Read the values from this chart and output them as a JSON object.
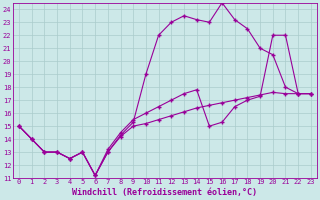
{
  "xlabel": "Windchill (Refroidissement éolien,°C)",
  "xlim": [
    -0.5,
    23.5
  ],
  "ylim": [
    11,
    24.5
  ],
  "xticks": [
    0,
    1,
    2,
    3,
    4,
    5,
    6,
    7,
    8,
    9,
    10,
    11,
    12,
    13,
    14,
    15,
    16,
    17,
    18,
    19,
    20,
    21,
    22,
    23
  ],
  "yticks": [
    11,
    12,
    13,
    14,
    15,
    16,
    17,
    18,
    19,
    20,
    21,
    22,
    23,
    24
  ],
  "bg_color": "#cce8e8",
  "grid_color": "#aacccc",
  "line_color": "#990099",
  "line1_x": [
    0,
    1,
    2,
    3,
    4,
    5,
    6,
    7,
    8,
    9,
    10,
    11,
    12,
    13,
    14,
    15,
    16,
    17,
    18,
    19,
    20,
    21,
    22,
    23
  ],
  "line1_y": [
    15.0,
    14.0,
    13.0,
    13.0,
    12.5,
    13.0,
    11.2,
    13.0,
    14.3,
    15.3,
    19.0,
    22.0,
    23.0,
    23.5,
    23.2,
    23.0,
    24.5,
    23.2,
    22.5,
    21.0,
    20.5,
    18.0,
    17.5,
    17.5
  ],
  "line2_x": [
    0,
    1,
    2,
    3,
    4,
    5,
    6,
    7,
    8,
    9,
    10,
    11,
    12,
    13,
    14,
    15,
    16,
    17,
    18,
    19,
    20,
    21,
    22,
    23
  ],
  "line2_y": [
    15.0,
    14.0,
    13.0,
    13.0,
    12.5,
    13.0,
    11.2,
    13.2,
    14.5,
    15.5,
    16.0,
    16.5,
    17.0,
    17.5,
    17.8,
    15.0,
    15.3,
    16.5,
    17.0,
    17.3,
    22.0,
    22.0,
    17.5,
    17.5
  ],
  "line3_x": [
    0,
    1,
    2,
    3,
    4,
    5,
    6,
    7,
    8,
    9,
    10,
    11,
    12,
    13,
    14,
    15,
    16,
    17,
    18,
    19,
    20,
    21,
    22,
    23
  ],
  "line3_y": [
    15.0,
    14.0,
    13.0,
    13.0,
    12.5,
    13.0,
    11.2,
    13.0,
    14.2,
    15.0,
    15.2,
    15.5,
    15.8,
    16.1,
    16.4,
    16.6,
    16.8,
    17.0,
    17.2,
    17.4,
    17.6,
    17.5,
    17.5,
    17.5
  ],
  "markersize": 3,
  "linewidth": 0.8,
  "tick_fontsize": 5.0,
  "label_fontsize": 6.0
}
